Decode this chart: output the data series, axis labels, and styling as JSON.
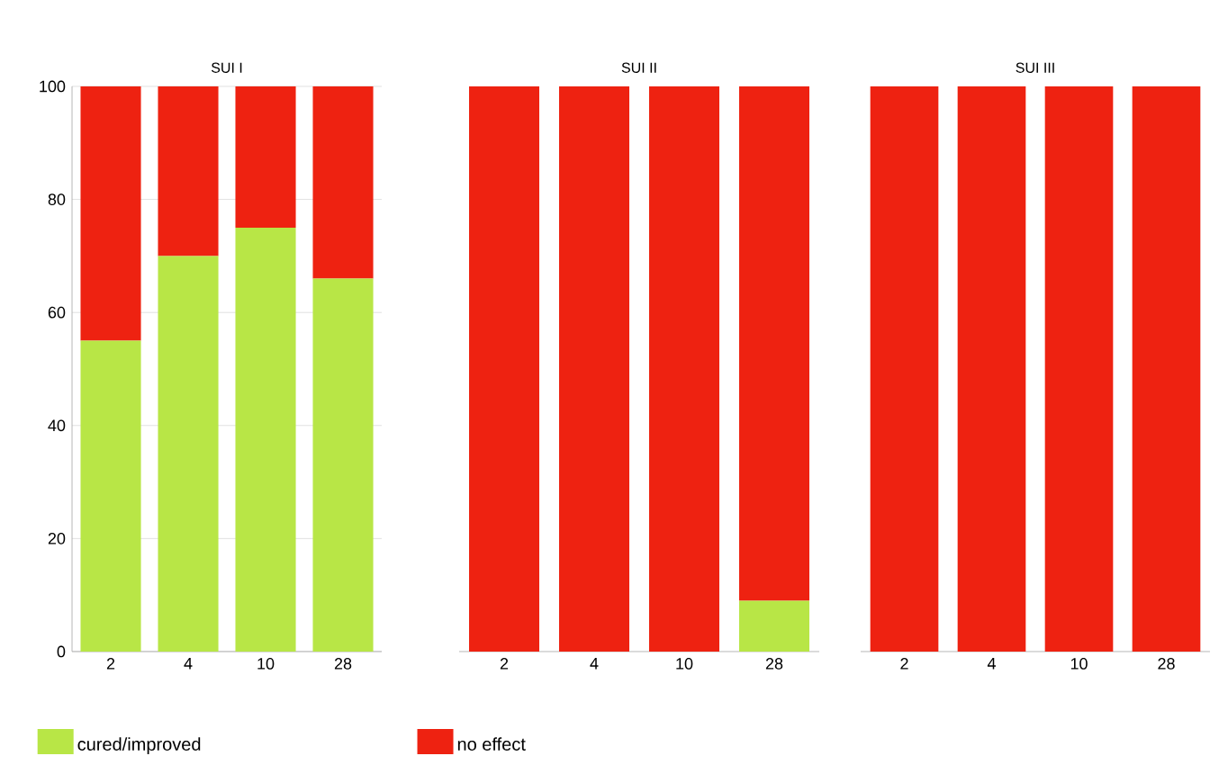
{
  "chart_data": [
    {
      "type": "bar",
      "title": "SUI I",
      "stacked": true,
      "categories": [
        "2",
        "4",
        "10",
        "28"
      ],
      "ylim": [
        0,
        100
      ],
      "yticks": [
        0,
        20,
        40,
        60,
        80,
        100
      ],
      "grid": "y",
      "legend": "bottom",
      "series": [
        {
          "name": "cured/improved",
          "color": "#b8e646",
          "values": [
            55,
            70,
            75,
            66
          ]
        },
        {
          "name": "no effect",
          "color": "#ee2211",
          "values": [
            45,
            30,
            25,
            34
          ]
        }
      ]
    },
    {
      "type": "bar",
      "title": "SUI II",
      "stacked": true,
      "categories": [
        "2",
        "4",
        "10",
        "28"
      ],
      "ylim": [
        0,
        100
      ],
      "yticks": [
        0,
        20,
        40,
        60,
        80,
        100
      ],
      "grid": "y",
      "tick_labels": "x",
      "series": [
        {
          "color": "#b8e646",
          "values": [
            0,
            0,
            0,
            9
          ]
        },
        {
          "color": "#ee2211",
          "values": [
            100,
            100,
            100,
            91
          ]
        }
      ]
    },
    {
      "type": "bar",
      "title": "SUI III",
      "stacked": true,
      "categories": [
        "2",
        "4",
        "10",
        "28"
      ],
      "ylim": [
        0,
        100
      ],
      "yticks": [
        0,
        20,
        40,
        60,
        80,
        100
      ],
      "grid": "y",
      "tick_labels": "x",
      "series": [
        {
          "color": "#b8e646",
          "values": [
            0,
            0,
            0,
            0
          ]
        },
        {
          "color": "#ee2211",
          "values": [
            100,
            100,
            100,
            100
          ]
        }
      ]
    }
  ]
}
